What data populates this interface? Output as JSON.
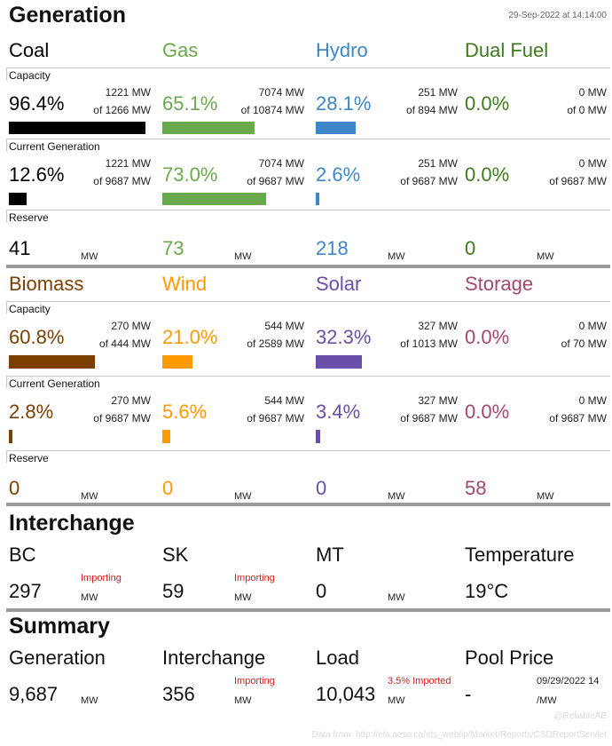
{
  "header": {
    "title": "Generation",
    "timestamp": "29-Sep-2022 at 14:14:00"
  },
  "labels": {
    "capacity": "Capacity",
    "current": "Current Generation",
    "reserve": "Reserve",
    "mw": "MW"
  },
  "colors": {
    "coal": "#000000",
    "gas": "#6aaa4d",
    "hydro": "#3d86c8",
    "dual": "#3e7a1e",
    "biomass": "#7b3f00",
    "wind": "#ff9900",
    "solar": "#6a4fa8",
    "storage": "#a4466e",
    "importing": "#d21f1f"
  },
  "groups": [
    {
      "fuels": [
        {
          "name": "Coal",
          "color": "#000000",
          "capacity": {
            "pct": "96.4%",
            "num": "1221 MW",
            "den": "of 1266 MW",
            "fill": 0.964
          },
          "current": {
            "pct": "12.6%",
            "num": "1221 MW",
            "den": "of 9687 MW",
            "fill": 0.126
          },
          "reserve": "41"
        },
        {
          "name": "Gas",
          "color": "#6aaa4d",
          "capacity": {
            "pct": "65.1%",
            "num": "7074 MW",
            "den": "of 10874 MW",
            "fill": 0.651
          },
          "current": {
            "pct": "73.0%",
            "num": "7074 MW",
            "den": "of 9687 MW",
            "fill": 0.73
          },
          "reserve": "73"
        },
        {
          "name": "Hydro",
          "color": "#3d86c8",
          "capacity": {
            "pct": "28.1%",
            "num": "251 MW",
            "den": "of 894 MW",
            "fill": 0.281
          },
          "current": {
            "pct": "2.6%",
            "num": "251 MW",
            "den": "of 9687 MW",
            "fill": 0.026
          },
          "reserve": "218"
        },
        {
          "name": "Dual Fuel",
          "color": "#3e7a1e",
          "capacity": {
            "pct": "0.0%",
            "num": "0 MW",
            "den": "of 0 MW",
            "fill": 0
          },
          "current": {
            "pct": "0.0%",
            "num": "0 MW",
            "den": "of 9687 MW",
            "fill": 0
          },
          "reserve": "0"
        }
      ]
    },
    {
      "fuels": [
        {
          "name": "Biomass",
          "color": "#7b3f00",
          "capacity": {
            "pct": "60.8%",
            "num": "270 MW",
            "den": "of 444 MW",
            "fill": 0.608
          },
          "current": {
            "pct": "2.8%",
            "num": "270 MW",
            "den": "of 9687 MW",
            "fill": 0.028
          },
          "reserve": "0"
        },
        {
          "name": "Wind",
          "color": "#ff9900",
          "capacity": {
            "pct": "21.0%",
            "num": "544 MW",
            "den": "of 2589 MW",
            "fill": 0.21
          },
          "current": {
            "pct": "5.6%",
            "num": "544 MW",
            "den": "of 9687 MW",
            "fill": 0.056
          },
          "reserve": "0"
        },
        {
          "name": "Solar",
          "color": "#6a4fa8",
          "capacity": {
            "pct": "32.3%",
            "num": "327 MW",
            "den": "of 1013 MW",
            "fill": 0.323
          },
          "current": {
            "pct": "3.4%",
            "num": "327 MW",
            "den": "of 9687 MW",
            "fill": 0.034
          },
          "reserve": "0"
        },
        {
          "name": "Storage",
          "color": "#a4466e",
          "capacity": {
            "pct": "0.0%",
            "num": "0 MW",
            "den": "of 70 MW",
            "fill": 0
          },
          "current": {
            "pct": "0.0%",
            "num": "0 MW",
            "den": "of 9687 MW",
            "fill": 0
          },
          "reserve": "58"
        }
      ]
    }
  ],
  "interchange": {
    "title": "Interchange",
    "items": [
      {
        "name": "BC",
        "value": "297",
        "unit": "MW",
        "status": "Importing"
      },
      {
        "name": "SK",
        "value": "59",
        "unit": "MW",
        "status": "Importing"
      },
      {
        "name": "MT",
        "value": "0",
        "unit": "MW",
        "status": ""
      },
      {
        "name": "Temperature",
        "value": "19°C",
        "unit": "",
        "status": ""
      }
    ]
  },
  "summary": {
    "title": "Summary",
    "items": [
      {
        "name": "Generation",
        "value": "9,687",
        "unit": "MW",
        "status": ""
      },
      {
        "name": "Interchange",
        "value": "356",
        "unit": "MW",
        "status": "Importing"
      },
      {
        "name": "Load",
        "value": "10,043",
        "unit": "MW",
        "status": "3.5% Imported"
      },
      {
        "name": "Pool Price",
        "value": "-",
        "unit": "/MW",
        "status": "09/29/2022 14"
      }
    ]
  },
  "footer": {
    "handle": "@ReliableAB",
    "source": "Data from: http://ets.aeso.ca/ets_web/ip/Market/Reports/CSDReportServlet"
  }
}
